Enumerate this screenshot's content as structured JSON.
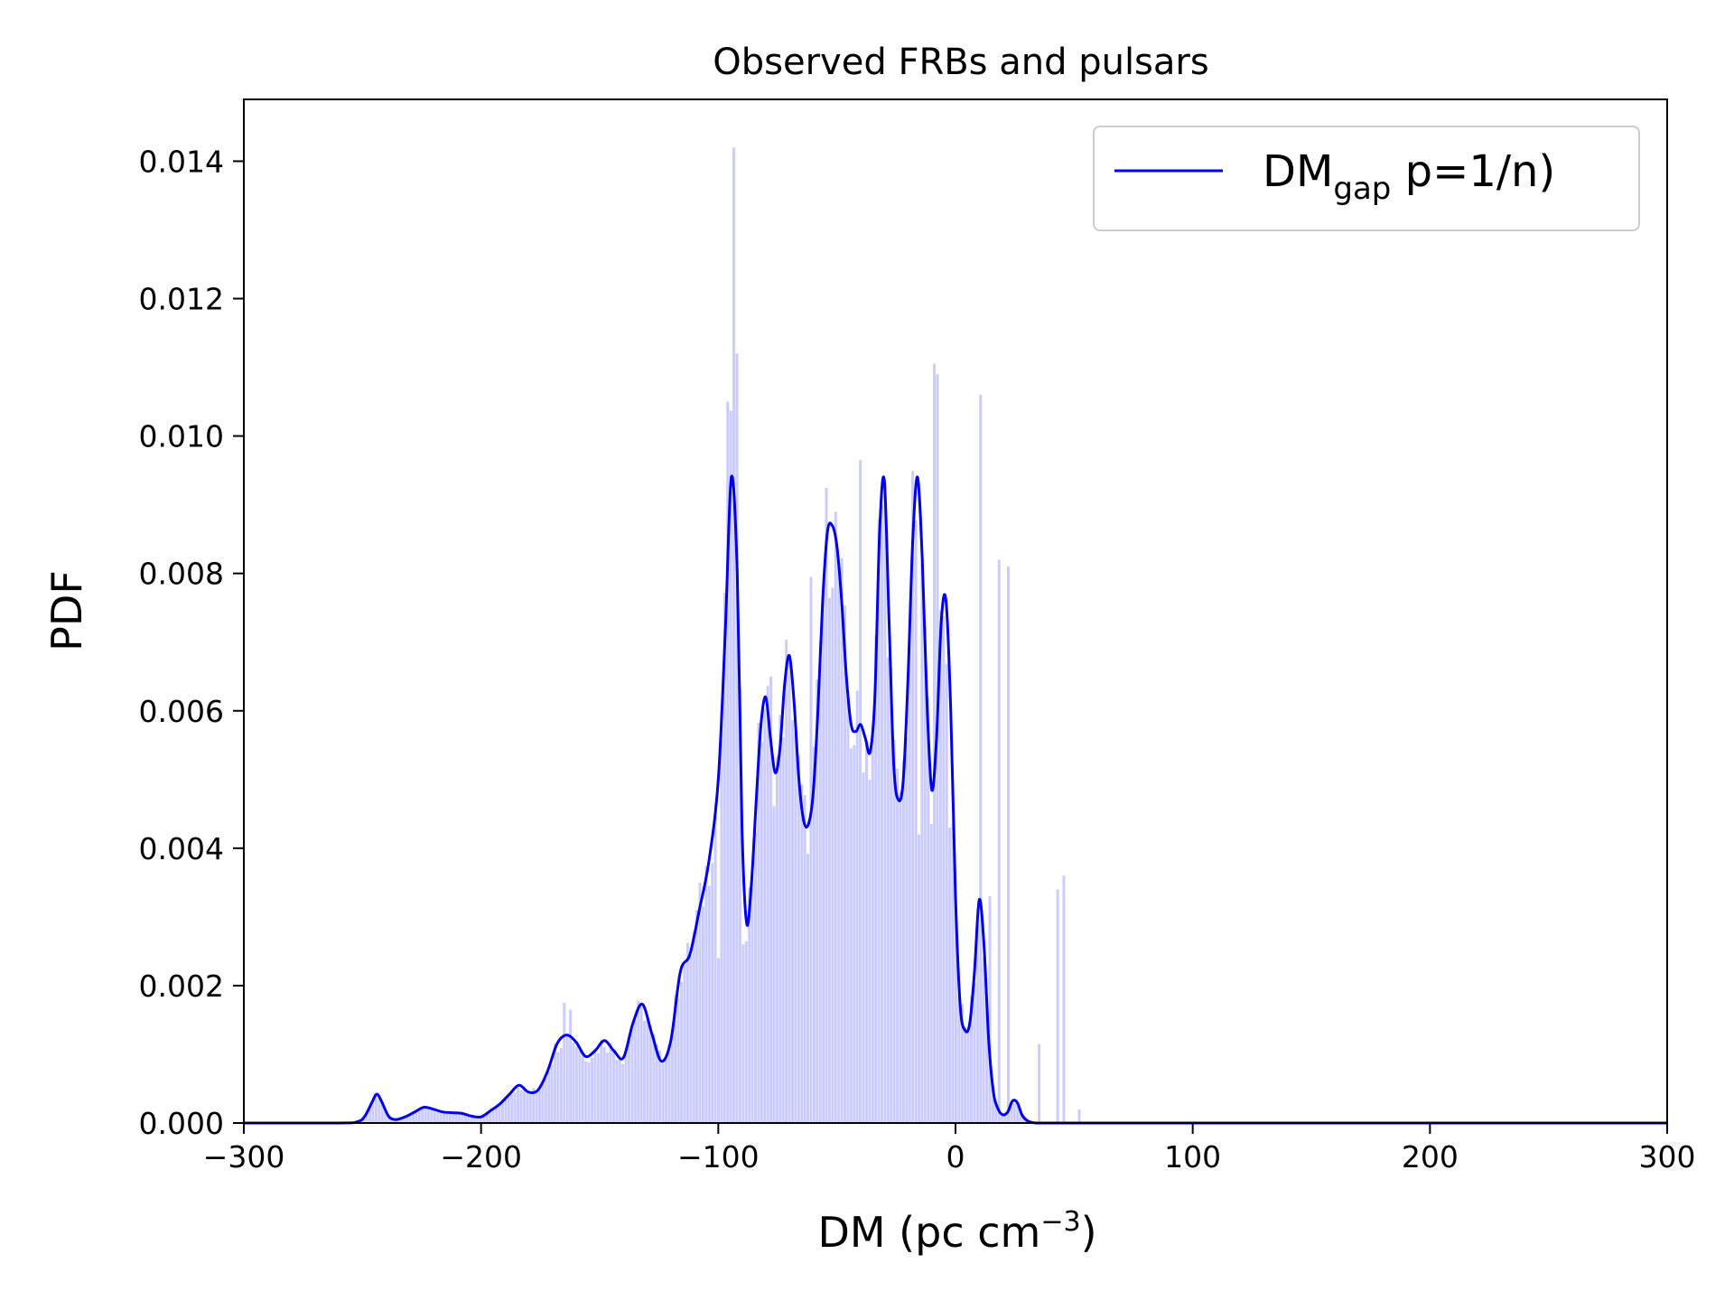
{
  "chart_data": {
    "type": "area",
    "title": "Observed FRBs and pulsars",
    "xlabel": "DM (pc cm",
    "xlabel_sup": "−3",
    "xlabel_close": ")",
    "ylabel": "PDF",
    "xlim": [
      -300,
      300
    ],
    "ylim": [
      0,
      0.0149
    ],
    "xticks": [
      -300,
      -200,
      -100,
      0,
      100,
      200,
      300
    ],
    "xtick_labels": [
      "−300",
      "−200",
      "−100",
      "0",
      "100",
      "200",
      "300"
    ],
    "yticks": [
      0,
      0.002,
      0.004,
      0.006,
      0.008,
      0.01,
      0.012,
      0.014
    ],
    "ytick_labels": [
      "0.000",
      "0.002",
      "0.004",
      "0.006",
      "0.008",
      "0.010",
      "0.012",
      "0.014"
    ],
    "grid": false,
    "legend": {
      "placement": "top-right",
      "entries": [
        {
          "main": "DM",
          "sub": "gap",
          "rest": " p=1/n)",
          "color": "#0000ee"
        }
      ]
    },
    "colors": {
      "line": "#0000ee",
      "hist": "#ccccff"
    },
    "series": [
      {
        "kind": "line",
        "x": [
          -300,
          -260,
          -252,
          -249,
          -246,
          -244,
          -242,
          -239,
          -236,
          -232,
          -228,
          -224,
          -220,
          -216,
          -212,
          -208,
          -204,
          -200,
          -196,
          -192,
          -188,
          -184,
          -180,
          -176,
          -172,
          -168,
          -164,
          -160,
          -156,
          -152,
          -148,
          -144,
          -140,
          -136,
          -132,
          -128,
          -124,
          -120,
          -116,
          -112,
          -108,
          -104,
          -100,
          -97,
          -94.5,
          -92,
          -90,
          -88,
          -86,
          -84,
          -82,
          -80,
          -78,
          -76,
          -74,
          -72,
          -70,
          -68,
          -66,
          -64,
          -62,
          -60,
          -58,
          -56,
          -54,
          -52,
          -50,
          -48,
          -46,
          -44,
          -42,
          -40,
          -38,
          -36,
          -34,
          -32,
          -30,
          -28,
          -26,
          -24,
          -22,
          -20,
          -18,
          -16,
          -14,
          -12,
          -10,
          -8,
          -6,
          -4,
          -2,
          0,
          2,
          4,
          6,
          8,
          10,
          12,
          14,
          16,
          18,
          20,
          22,
          24,
          26,
          28,
          30,
          32,
          34,
          36,
          38,
          40,
          42,
          44,
          46,
          48,
          50,
          52,
          54,
          56,
          58,
          60,
          62,
          64,
          66,
          68,
          70,
          72,
          74,
          76,
          80,
          100,
          200,
          300
        ],
        "y": [
          0,
          0,
          2e-05,
          0.0001,
          0.0003,
          0.00042,
          0.00032,
          0.0001,
          5e-05,
          9e-05,
          0.00016,
          0.00023,
          0.0002,
          0.00016,
          0.00015,
          0.00014,
          0.0001,
          9e-05,
          0.00018,
          0.00028,
          0.00042,
          0.00055,
          0.00045,
          0.00048,
          0.00075,
          0.00115,
          0.00128,
          0.00118,
          0.00097,
          0.00105,
          0.0012,
          0.00105,
          0.00095,
          0.00145,
          0.00173,
          0.0013,
          0.0009,
          0.0012,
          0.0022,
          0.00245,
          0.0031,
          0.0038,
          0.005,
          0.0072,
          0.0094,
          0.008,
          0.0043,
          0.0029,
          0.0035,
          0.0047,
          0.0058,
          0.0062,
          0.0056,
          0.0051,
          0.00545,
          0.0064,
          0.0068,
          0.0061,
          0.005,
          0.0044,
          0.00435,
          0.0048,
          0.006,
          0.0076,
          0.0086,
          0.0087,
          0.0084,
          0.0076,
          0.0065,
          0.0058,
          0.0057,
          0.0058,
          0.0056,
          0.0054,
          0.0062,
          0.0086,
          0.00935,
          0.0073,
          0.0052,
          0.0047,
          0.005,
          0.0065,
          0.0085,
          0.0094,
          0.0082,
          0.0061,
          0.00485,
          0.0056,
          0.0073,
          0.0076,
          0.006,
          0.0033,
          0.0017,
          0.00135,
          0.00145,
          0.0022,
          0.00325,
          0.0026,
          0.0012,
          0.00045,
          0.0002,
          0.00012,
          0.00016,
          0.00032,
          0.0003,
          0.00012,
          4e-05,
          1e-05,
          0,
          0,
          0,
          0,
          0,
          0,
          0,
          0,
          0,
          0,
          0,
          0,
          0,
          0,
          0,
          0,
          0,
          0,
          0,
          0,
          0,
          0,
          0,
          0,
          0,
          0
        ],
        "x_shift_note": ""
      }
    ],
    "histogram": {
      "kind": "bar",
      "bin_width": 1.3,
      "x_start": -250,
      "x_end": 72,
      "spikes": [
        {
          "x": -94.5,
          "y": 0.0142
        },
        {
          "x": -93.2,
          "y": 0.0112
        },
        {
          "x": -96.5,
          "y": 0.0105
        },
        {
          "x": -9.5,
          "y": 0.01105
        },
        {
          "x": -8.2,
          "y": 0.0109
        },
        {
          "x": 9.5,
          "y": 0.0106
        },
        {
          "x": -40.5,
          "y": 0.00965
        },
        {
          "x": -61.0,
          "y": 0.00795
        },
        {
          "x": 18.0,
          "y": 0.0082
        },
        {
          "x": 22.0,
          "y": 0.0081
        },
        {
          "x": 44.5,
          "y": 0.0036
        },
        {
          "x": 42.0,
          "y": 0.0034
        },
        {
          "x": -165.5,
          "y": 0.00175
        },
        {
          "x": -163.5,
          "y": 0.00165
        },
        {
          "x": -132.5,
          "y": 0.0017
        },
        {
          "x": -78.0,
          "y": 0.0065
        },
        {
          "x": -71.0,
          "y": 0.0067
        }
      ],
      "dips": [
        {
          "x": -100.5,
          "y": 0.0024
        },
        {
          "x": -89.5,
          "y": 0.0026
        },
        {
          "x": -15.5,
          "y": 0.0042
        },
        {
          "x": -3.5,
          "y": 0.0043
        },
        {
          "x": 13.5,
          "y": 0.0033
        },
        {
          "x": 35.0,
          "y": 0.00115
        },
        {
          "x": 52.0,
          "y": 0.0002
        }
      ]
    }
  }
}
